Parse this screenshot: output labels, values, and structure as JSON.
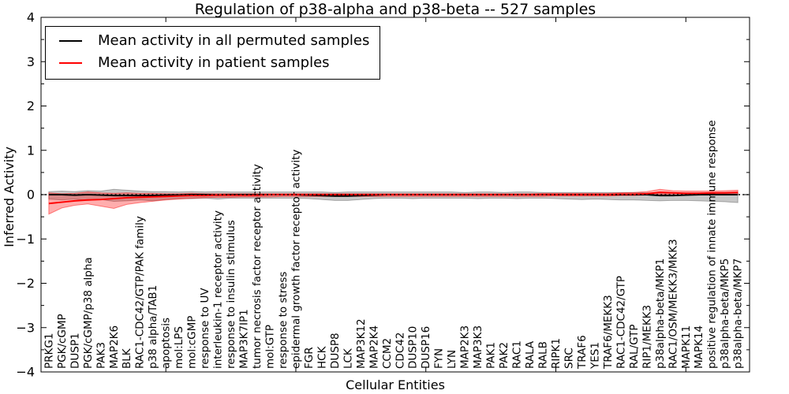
{
  "legend": {
    "items": [
      {
        "label": "Mean activity in all permuted samples",
        "color": "#000000"
      },
      {
        "label": "Mean activity in patient samples",
        "color": "#ff0000"
      }
    ]
  },
  "chart_data": {
    "type": "line",
    "title": "Regulation of p38-alpha and p38-beta -- 527 samples",
    "xlabel": "Cellular Entities",
    "ylabel": "Inferred Activity",
    "ylim": [
      -4,
      4
    ],
    "xlim": [
      0.4,
      54.9
    ],
    "yticks": [
      -4,
      -3,
      -2,
      -1,
      0,
      1,
      2,
      3,
      4
    ],
    "y_minor_step": 0.5,
    "xticks": [
      10,
      20,
      30,
      40,
      50
    ],
    "grid": false,
    "legend_position": "upper-left",
    "zero_line": {
      "show": true,
      "color": "#000000",
      "style": "dotted"
    },
    "categories": [
      "PRKG1",
      "PGK/cGMP",
      "DUSP1",
      "PGK/cGMP/p38 alpha",
      "PAK3",
      "MAP2K6",
      "BLK",
      "RAC1-CDC42/GTP/PAK family",
      "p38 alpha/TAB1",
      "apoptosis",
      "mol:LPS",
      "mol:cGMP",
      "response to UV",
      "interleukin-1 receptor activity",
      "response to insulin stimulus",
      "MAP3K7IP1",
      "tumor necrosis factor receptor activity",
      "mol:GTP",
      "response to stress",
      "epidermal growth factor receptor activity",
      "FGR",
      "HCK",
      "DUSP8",
      "LCK",
      "MAP3K12",
      "MAP2K4",
      "CCM2",
      "CDC42",
      "DUSP10",
      "DUSP16",
      "FYN",
      "LYN",
      "MAP2K3",
      "MAP3K3",
      "PAK1",
      "PAK2",
      "RAC1",
      "RALA",
      "RALB",
      "RIPK1",
      "SRC",
      "TRAF6",
      "YES1",
      "TRAF6/MEKK3",
      "RAC1-CDC42/GTP",
      "RAL/GTP",
      "RIP1/MEKK3",
      "p38alpha-beta/MKP1",
      "RAC1/OSM/MEKK3/MKK3",
      "MAPK11",
      "MAPK14",
      "positive regulation of innate immune response",
      "p38alpha-beta/MKP5",
      "p38alpha-beta/MKP7"
    ],
    "series": [
      {
        "name": "Mean activity in all permuted samples",
        "color": "#000000",
        "values": [
          0.0,
          0.0,
          -0.01,
          0.0,
          -0.01,
          -0.02,
          -0.02,
          -0.02,
          -0.02,
          -0.01,
          -0.01,
          0.0,
          0.0,
          -0.01,
          0.0,
          0.0,
          0.0,
          0.0,
          0.0,
          0.0,
          -0.01,
          -0.02,
          -0.03,
          -0.03,
          -0.02,
          -0.01,
          0.0,
          0.0,
          0.0,
          0.0,
          0.0,
          0.0,
          0.0,
          0.0,
          0.0,
          0.0,
          0.0,
          0.0,
          0.0,
          0.0,
          0.0,
          0.0,
          0.0,
          0.0,
          0.0,
          0.0,
          0.0,
          -0.02,
          -0.02,
          -0.01,
          0.0,
          0.0,
          0.0,
          0.0
        ]
      },
      {
        "name": "Mean activity in patient samples",
        "color": "#ff0000",
        "values": [
          -0.2,
          -0.17,
          -0.14,
          -0.12,
          -0.11,
          -0.09,
          -0.07,
          -0.06,
          -0.05,
          -0.04,
          -0.03,
          -0.02,
          -0.02,
          -0.01,
          -0.01,
          -0.01,
          -0.01,
          0.0,
          0.0,
          0.0,
          0.0,
          0.0,
          0.0,
          0.0,
          0.0,
          0.0,
          0.0,
          0.0,
          0.0,
          0.0,
          0.0,
          0.0,
          0.0,
          0.0,
          0.0,
          0.0,
          0.0,
          0.0,
          0.0,
          0.0,
          0.0,
          0.0,
          0.0,
          0.0,
          0.01,
          0.01,
          0.02,
          0.05,
          0.04,
          0.03,
          0.03,
          0.04,
          0.04,
          0.05
        ]
      }
    ],
    "bands": [
      {
        "name": "permuted-band",
        "fill": "rgba(0,0,0,0.22)",
        "edge": "rgba(0,0,0,0.28)",
        "upper": [
          0.07,
          0.08,
          0.07,
          0.09,
          0.08,
          0.12,
          0.1,
          0.08,
          0.07,
          0.07,
          0.06,
          0.07,
          0.06,
          0.07,
          0.06,
          0.06,
          0.06,
          0.06,
          0.06,
          0.06,
          0.06,
          0.06,
          0.05,
          0.06,
          0.06,
          0.06,
          0.06,
          0.06,
          0.06,
          0.06,
          0.06,
          0.06,
          0.05,
          0.06,
          0.06,
          0.05,
          0.06,
          0.06,
          0.05,
          0.05,
          0.05,
          0.05,
          0.05,
          0.05,
          0.05,
          0.05,
          0.04,
          0.04,
          0.04,
          0.04,
          0.04,
          0.04,
          0.04,
          0.04
        ],
        "lower": [
          -0.1,
          -0.12,
          -0.1,
          -0.13,
          -0.11,
          -0.15,
          -0.14,
          -0.12,
          -0.14,
          -0.11,
          -0.09,
          -0.09,
          -0.08,
          -0.1,
          -0.08,
          -0.08,
          -0.08,
          -0.08,
          -0.08,
          -0.08,
          -0.09,
          -0.11,
          -0.13,
          -0.13,
          -0.11,
          -0.09,
          -0.08,
          -0.08,
          -0.09,
          -0.08,
          -0.08,
          -0.08,
          -0.08,
          -0.09,
          -0.08,
          -0.08,
          -0.09,
          -0.08,
          -0.08,
          -0.09,
          -0.1,
          -0.11,
          -0.1,
          -0.11,
          -0.12,
          -0.12,
          -0.13,
          -0.14,
          -0.13,
          -0.13,
          -0.14,
          -0.15,
          -0.16,
          -0.18
        ]
      },
      {
        "name": "patient-band",
        "fill": "rgba(255,0,0,0.32)",
        "edge": "rgba(255,0,0,0.45)",
        "upper": [
          0.04,
          0.02,
          0.03,
          0.06,
          0.04,
          0.03,
          0.04,
          0.03,
          0.03,
          0.02,
          0.02,
          0.03,
          0.02,
          0.02,
          0.02,
          0.02,
          0.02,
          0.02,
          0.02,
          0.02,
          0.02,
          0.02,
          0.02,
          0.02,
          0.02,
          0.02,
          0.02,
          0.02,
          0.02,
          0.02,
          0.02,
          0.02,
          0.02,
          0.02,
          0.02,
          0.02,
          0.02,
          0.02,
          0.03,
          0.03,
          0.03,
          0.03,
          0.03,
          0.03,
          0.04,
          0.05,
          0.07,
          0.12,
          0.09,
          0.08,
          0.08,
          0.08,
          0.09,
          0.1
        ],
        "lower": [
          -0.44,
          -0.3,
          -0.24,
          -0.21,
          -0.26,
          -0.31,
          -0.22,
          -0.18,
          -0.15,
          -0.12,
          -0.1,
          -0.08,
          -0.07,
          -0.06,
          -0.06,
          -0.05,
          -0.05,
          -0.05,
          -0.04,
          -0.04,
          -0.04,
          -0.04,
          -0.04,
          -0.04,
          -0.04,
          -0.04,
          -0.04,
          -0.04,
          -0.04,
          -0.04,
          -0.04,
          -0.04,
          -0.04,
          -0.04,
          -0.04,
          -0.04,
          -0.04,
          -0.04,
          -0.04,
          -0.03,
          -0.03,
          -0.03,
          -0.03,
          -0.03,
          -0.02,
          -0.02,
          -0.01,
          0.0,
          -0.01,
          -0.01,
          -0.01,
          0.0,
          0.0,
          0.01
        ]
      }
    ]
  }
}
